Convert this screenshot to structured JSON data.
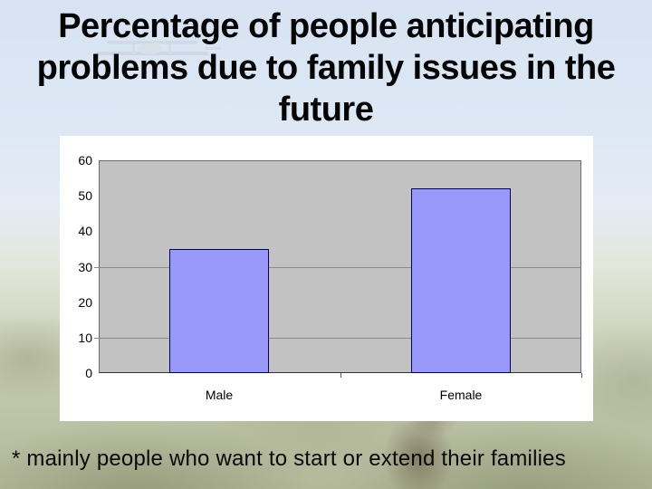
{
  "slide": {
    "title_lines": [
      "Percentage of people anticipating",
      "problems due to family issues in the",
      "future"
    ],
    "footnote": "* mainly people who want to start or extend their families"
  },
  "chart_data": {
    "type": "bar",
    "title": "Percentage of people anticipating problems due to family issues in the future",
    "categories": [
      "Male",
      "Female"
    ],
    "values": [
      35,
      52
    ],
    "xlabel": "",
    "ylabel": "",
    "ylim": [
      0,
      60
    ],
    "yticks": [
      0,
      10,
      20,
      30,
      40,
      50,
      60
    ],
    "gridline_values": [
      10,
      30
    ],
    "legend": "none",
    "plot_bg": "#c2c2c2",
    "bar_fill": "#9999fa",
    "bar_border": "#000060",
    "gridline_color": "#8a8a8a",
    "chart_bg": "#ffffff"
  },
  "background": {
    "sky_color": "#dde8f5",
    "foliage_color": "#b8bea0",
    "decoration": "biplane"
  }
}
